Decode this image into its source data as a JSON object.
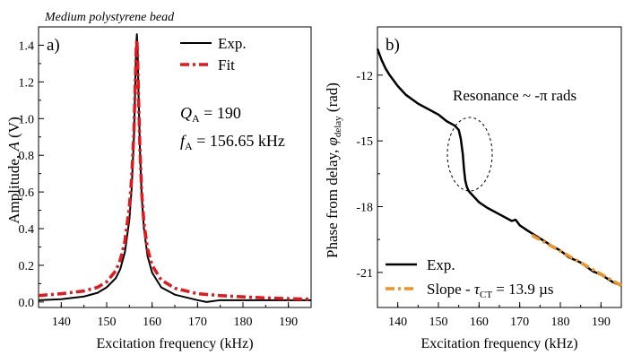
{
  "figure": {
    "caption": "Medium polystyrene bead"
  },
  "chart_data": [
    {
      "panel_label": "a)",
      "type": "line",
      "xlabel": "Excitation frequency (kHz)",
      "ylabel": "Amplitude, A (V)",
      "ylabel_parts": {
        "before": "Amplitude, ",
        "italic": "A",
        "after": " (V)"
      },
      "xlim": [
        135,
        195
      ],
      "ylim": [
        -0.03,
        1.5
      ],
      "x_ticks": [
        140,
        150,
        160,
        170,
        180,
        190
      ],
      "y_ticks": [
        0.0,
        0.2,
        0.4,
        0.6,
        0.8,
        1.0,
        1.2,
        1.4
      ],
      "y_tick_labels": [
        "0.0",
        "0.2",
        "0.4",
        "0.6",
        "0.8",
        "1.0",
        "1.2",
        "1.4"
      ],
      "legend_position": "top-right",
      "annotations": [
        {
          "symbol": "Q",
          "subscript": "A",
          "text": " = 190"
        },
        {
          "symbol": "f",
          "subscript": "A",
          "text": " = 156.65 kHz"
        }
      ],
      "series": [
        {
          "name": "Exp.",
          "color": "#000000",
          "style": "solid",
          "x": [
            135,
            140,
            145,
            148,
            150,
            152,
            153,
            154,
            155,
            155.5,
            156,
            156.3,
            156.5,
            156.65,
            156.8,
            157,
            157.3,
            157.7,
            158.2,
            159,
            160,
            162,
            165,
            170,
            172,
            175,
            180,
            185,
            190,
            195
          ],
          "y": [
            0.01,
            0.015,
            0.03,
            0.05,
            0.08,
            0.13,
            0.18,
            0.27,
            0.45,
            0.62,
            0.9,
            1.2,
            1.4,
            1.46,
            1.38,
            1.15,
            0.85,
            0.58,
            0.4,
            0.25,
            0.16,
            0.08,
            0.04,
            0.01,
            0.0,
            0.01,
            0.01,
            0.01,
            0.01,
            0.01
          ]
        },
        {
          "name": "Fit",
          "color": "#e8151b",
          "style": "dash-dot",
          "x": [
            135,
            140,
            145,
            148,
            150,
            152,
            153,
            154,
            155,
            155.5,
            156,
            156.3,
            156.5,
            156.65,
            156.8,
            157,
            157.3,
            157.7,
            158.2,
            159,
            160,
            162,
            165,
            170,
            175,
            180,
            185,
            190,
            195
          ],
          "y": [
            0.035,
            0.045,
            0.06,
            0.08,
            0.11,
            0.17,
            0.23,
            0.33,
            0.52,
            0.68,
            0.93,
            1.2,
            1.38,
            1.43,
            1.35,
            1.13,
            0.85,
            0.6,
            0.43,
            0.29,
            0.2,
            0.12,
            0.075,
            0.045,
            0.035,
            0.028,
            0.022,
            0.018,
            0.015
          ]
        }
      ]
    },
    {
      "panel_label": "b)",
      "type": "line",
      "xlabel": "Excitation frequency (kHz)",
      "ylabel": "Phase from delay, φdelay (rad)",
      "ylabel_parts": {
        "before": "Phase from delay, ",
        "italic": "φ",
        "subscript": "delay",
        "after": " (rad)"
      },
      "xlim": [
        135,
        195
      ],
      "ylim": [
        -22.6,
        -9.8
      ],
      "x_ticks": [
        140,
        150,
        160,
        170,
        180,
        190
      ],
      "y_ticks": [
        -12,
        -15,
        -18,
        -21
      ],
      "y_tick_labels": [
        "-12",
        "-15",
        "-18",
        "-21"
      ],
      "legend_position": "bottom-left",
      "annotations": [
        {
          "text": "Resonance ~ -π rads"
        }
      ],
      "legend_slope_label": {
        "before": "Slope - ",
        "symbol": "τ",
        "subscript": "CT",
        "after": " = 13.9 µs"
      },
      "series": [
        {
          "name": "Exp.",
          "color": "#000000",
          "style": "solid",
          "x": [
            135,
            136,
            137,
            138,
            140,
            142,
            145,
            148,
            150,
            152,
            154,
            155,
            155.5,
            156,
            156.3,
            156.6,
            157,
            157.5,
            158,
            159,
            160,
            162,
            165,
            168,
            169,
            170,
            172,
            175,
            178,
            180,
            182,
            185,
            188,
            190,
            193,
            195
          ],
          "y": [
            -10.8,
            -11.3,
            -11.7,
            -12.0,
            -12.5,
            -12.9,
            -13.3,
            -13.6,
            -13.8,
            -14.1,
            -14.3,
            -14.5,
            -14.9,
            -15.6,
            -16.3,
            -16.8,
            -17.1,
            -17.3,
            -17.4,
            -17.6,
            -17.8,
            -18.05,
            -18.35,
            -18.65,
            -18.6,
            -18.85,
            -19.1,
            -19.45,
            -19.8,
            -20.0,
            -20.3,
            -20.55,
            -20.95,
            -21.1,
            -21.45,
            -21.6
          ]
        },
        {
          "name": "Slope - τCT = 13.9 µs",
          "color": "#f39221",
          "style": "dash-dot",
          "x": [
            173,
            195
          ],
          "y": [
            -19.3,
            -21.6
          ]
        }
      ]
    }
  ]
}
